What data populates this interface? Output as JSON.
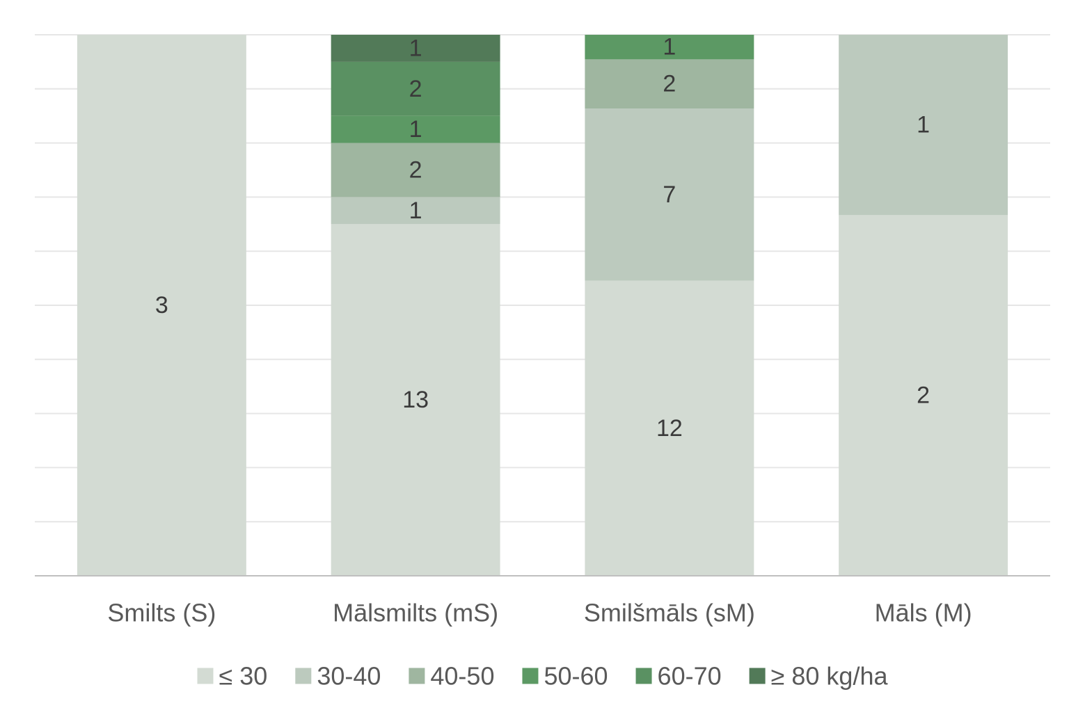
{
  "chart_data": {
    "type": "bar",
    "stacking": "percent",
    "grid": true,
    "legend_position": "bottom",
    "categories": [
      "Smilts (S)",
      "Mālsmilts (mS)",
      "Smilšmāls (sM)",
      "Māls (M)"
    ],
    "series": [
      {
        "name": "≤ 30",
        "color": "#d3dbd3",
        "values": [
          3,
          13,
          12,
          2
        ]
      },
      {
        "name": "30-40",
        "color": "#bccabe",
        "values": [
          0,
          1,
          7,
          1
        ]
      },
      {
        "name": "40-50",
        "color": "#9fb6a0",
        "values": [
          0,
          2,
          2,
          0
        ]
      },
      {
        "name": "50-60",
        "color": "#5c9964",
        "values": [
          0,
          1,
          1,
          0
        ]
      },
      {
        "name": "60-70",
        "color": "#5a9162",
        "values": [
          0,
          2,
          0,
          0
        ]
      },
      {
        "name": "≥ 80 kg/ha",
        "color": "#527a58",
        "values": [
          0,
          1,
          0,
          0
        ]
      }
    ],
    "ylim": [
      0,
      1
    ],
    "title": "",
    "xlabel": "",
    "ylabel": ""
  }
}
